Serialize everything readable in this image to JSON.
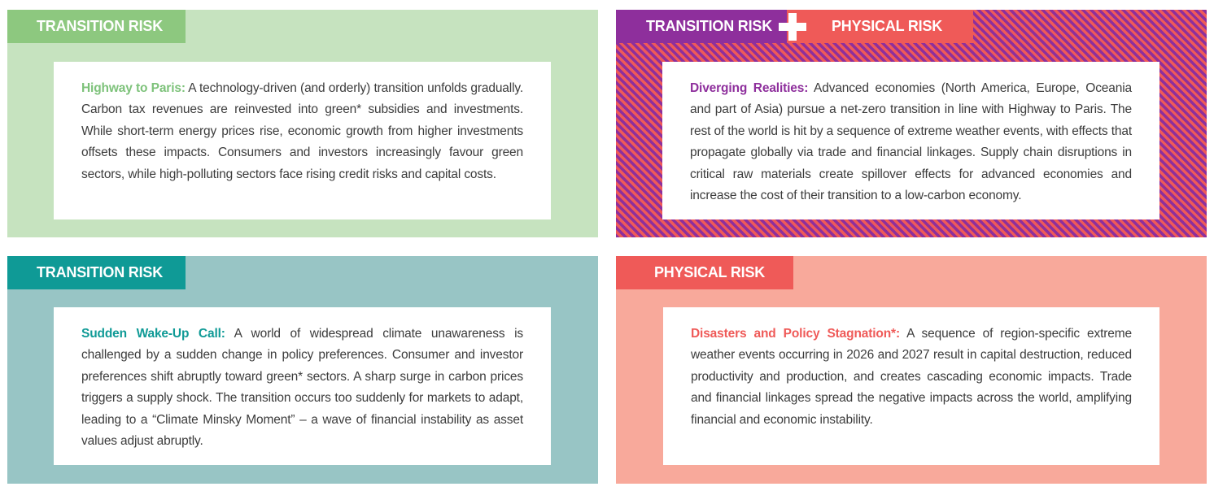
{
  "panels": [
    {
      "tag": "TRANSITION RISK",
      "lead": "Highway to Paris:",
      "body": " A technology-driven (and orderly) transition unfolds gradually. Carbon tax revenues are reinvested into green* subsidies and investments. While short-term energy prices rise, economic growth from higher investments offsets these impacts. Consumers and investors increasingly favour green sectors, while high-polluting sectors face rising credit risks and capital costs.",
      "accent": "#7dc27a",
      "background": "#c6e3bf"
    },
    {
      "tags": [
        "TRANSITION RISK",
        "PHYSICAL RISK"
      ],
      "plus_icon": "plus-icon",
      "lead": "Diverging Realities:",
      "body": " Advanced economies (North America, Europe, Oceania and part of Asia) pursue a net-zero transition in line with Highway to Paris. The rest of the world is hit by a sequence of extreme weather events, with effects that propagate globally via trade and financial linkages. Supply chain disruptions in critical raw materials create spillover effects for advanced economies and increase the cost of their transition to a low-carbon economy.",
      "accent": "#8e2f9c",
      "accent_secondary": "#ef5a58"
    },
    {
      "tag": "TRANSITION RISK",
      "lead": "Sudden Wake-Up Call:",
      "body": " A world of widespread climate unawareness is challenged by a sudden change in policy preferences. Consumer and investor preferences shift abruptly toward green* sectors. A sharp surge in carbon prices triggers a supply shock. The transition occurs too suddenly for markets to adapt, leading to a “Climate Minsky Moment” – a wave of financial instability as asset values adjust abruptly.",
      "accent": "#0f9a96",
      "background": "#98c5c5"
    },
    {
      "tag": "PHYSICAL RISK",
      "lead": "Disasters and Policy Stagnation*:",
      "body": " A sequence of region-specific extreme weather events occurring in 2026 and 2027 result in capital destruction, reduced productivity and production, and creates cascading economic impacts. Trade and financial linkages spread the negative impacts across the world, amplifying financial and economic instability.",
      "accent": "#ef5a58",
      "background": "#f8a99b"
    }
  ]
}
